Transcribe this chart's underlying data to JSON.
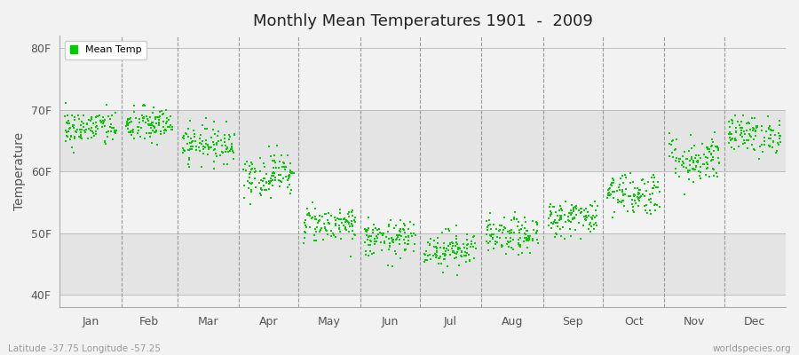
{
  "title": "Monthly Mean Temperatures 1901  -  2009",
  "ylabel": "Temperature",
  "xlabel_bottom": "Latitude -37.75 Longitude -57.25",
  "watermark": "worldspecies.org",
  "legend_label": "Mean Temp",
  "dot_color": "#00cc00",
  "bg_color": "#f2f2f2",
  "plot_bg_light": "#f2f2f2",
  "plot_bg_dark": "#e4e4e4",
  "yticks_labels": [
    "40F",
    "50F",
    "60F",
    "70F",
    "80F"
  ],
  "ytick_values": [
    40,
    50,
    60,
    70,
    80
  ],
  "ylim": [
    38,
    82
  ],
  "months": [
    "Jan",
    "Feb",
    "Mar",
    "Apr",
    "May",
    "Jun",
    "Jul",
    "Aug",
    "Sep",
    "Oct",
    "Nov",
    "Dec"
  ],
  "month_means_f": [
    67.0,
    67.5,
    64.5,
    59.5,
    51.5,
    49.0,
    47.5,
    49.5,
    52.5,
    56.5,
    62.0,
    66.0
  ],
  "month_stds_f": [
    1.5,
    1.5,
    1.5,
    1.8,
    1.5,
    1.5,
    1.5,
    1.5,
    1.5,
    1.8,
    2.0,
    1.5
  ],
  "n_years": 109,
  "seed": 42
}
